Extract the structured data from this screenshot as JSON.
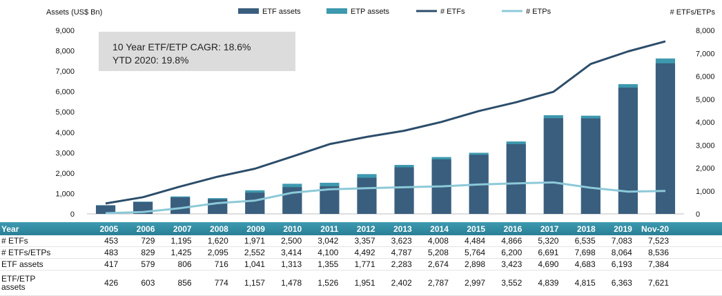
{
  "chart_data": {
    "type": "bar",
    "categories": [
      "2005",
      "2006",
      "2007",
      "2008",
      "2009",
      "2010",
      "2011",
      "2012",
      "2013",
      "2014",
      "2015",
      "2016",
      "2017",
      "2018",
      "2019",
      "Nov-20"
    ],
    "series": [
      {
        "name": "ETF assets",
        "type": "bar",
        "axis": "left",
        "color": "#3a5e7e",
        "values": [
          417,
          579,
          806,
          716,
          1041,
          1313,
          1355,
          1771,
          2283,
          2674,
          2898,
          3423,
          4690,
          4683,
          6193,
          7384
        ]
      },
      {
        "name": "ETP assets",
        "type": "bar",
        "axis": "left",
        "color": "#3d99ae",
        "values": [
          426,
          603,
          856,
          774,
          1157,
          1478,
          1526,
          1951,
          2402,
          2787,
          2997,
          3552,
          4839,
          4815,
          6363,
          7621
        ]
      },
      {
        "name": "# ETFs",
        "type": "line",
        "axis": "right",
        "color": "#2c4d6a",
        "values": [
          453,
          729,
          1195,
          1620,
          1971,
          2500,
          3042,
          3357,
          3623,
          4008,
          4484,
          4866,
          5320,
          6535,
          7083,
          7523
        ]
      },
      {
        "name": "# ETPs",
        "type": "line",
        "axis": "right",
        "color": "#8cc9d8",
        "values": [
          30,
          80,
          250,
          470,
          580,
          920,
          1070,
          1120,
          1160,
          1200,
          1280,
          1330,
          1370,
          1140,
          970,
          1000
        ]
      }
    ],
    "ylabel_left": "Assets (US$ Bn)",
    "ylabel_right": "# ETFs/ETPs",
    "ylim_left": [
      0,
      9000
    ],
    "ylim_right": [
      0,
      8000
    ],
    "yticks_left": [
      "0",
      "1,000",
      "2,000",
      "3,000",
      "4,000",
      "5,000",
      "6,000",
      "7,000",
      "8,000",
      "9,000"
    ],
    "yticks_right": [
      "0",
      "1,000",
      "2,000",
      "3,000",
      "4,000",
      "5,000",
      "6,000",
      "7,000",
      "8,000"
    ],
    "legend": [
      "ETF assets",
      "ETP assets",
      "# ETFs",
      "# ETPs"
    ],
    "legend_placement": "top-center",
    "grid": false,
    "annotation": [
      "10 Year ETF/ETP CAGR: 18.6%",
      "YTD 2020: 19.8%"
    ]
  },
  "table": {
    "header_label": "Year",
    "columns": [
      "2005",
      "2006",
      "2007",
      "2008",
      "2009",
      "2010",
      "2011",
      "2012",
      "2013",
      "2014",
      "2015",
      "2016",
      "2017",
      "2018",
      "2019",
      "Nov-20"
    ],
    "rows": [
      {
        "label": "# ETFs",
        "values": [
          "453",
          "729",
          "1,195",
          "1,620",
          "1,971",
          "2,500",
          "3,042",
          "3,357",
          "3,623",
          "4,008",
          "4,484",
          "4,866",
          "5,320",
          "6,535",
          "7,083",
          "7,523"
        ]
      },
      {
        "label": "# ETFs/ETPs",
        "values": [
          "483",
          "829",
          "1,425",
          "2,095",
          "2,552",
          "3,414",
          "4,100",
          "4,492",
          "4,787",
          "5,208",
          "5,764",
          "6,200",
          "6,691",
          "7,698",
          "8,064",
          "8,536"
        ]
      },
      {
        "label": "ETF assets",
        "values": [
          "417",
          "579",
          "806",
          "716",
          "1,041",
          "1,313",
          "1,355",
          "1,771",
          "2,283",
          "2,674",
          "2,898",
          "3,423",
          "4,690",
          "4,683",
          "6,193",
          "7,384"
        ]
      },
      {
        "label": "ETF/ETP assets",
        "values": [
          "426",
          "603",
          "856",
          "774",
          "1,157",
          "1,478",
          "1,526",
          "1,951",
          "2,402",
          "2,787",
          "2,997",
          "3,552",
          "4,839",
          "4,815",
          "6,363",
          "7,621"
        ]
      }
    ]
  }
}
